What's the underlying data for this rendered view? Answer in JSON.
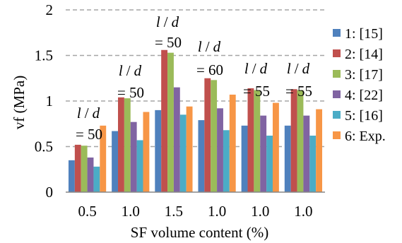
{
  "chart_data": {
    "type": "bar",
    "xlabel": "SF volume content (%)",
    "ylabel": "vf  (MPa)",
    "ylim": [
      0,
      2
    ],
    "yticks": [
      "0",
      "0.5",
      "1",
      "1.5",
      "2"
    ],
    "grid": true,
    "legend_position": "right",
    "categories": [
      "0.5",
      "1.0",
      "1.5",
      "1.0",
      "1.0",
      "1.0"
    ],
    "series": [
      {
        "name": "1: [15]",
        "color": "#4f81bd",
        "values": [
          0.35,
          0.67,
          0.9,
          0.79,
          0.73,
          0.73
        ]
      },
      {
        "name": "2: [14]",
        "color": "#c0504d",
        "values": [
          0.52,
          1.04,
          1.56,
          1.25,
          1.14,
          1.13
        ]
      },
      {
        "name": "3: [17]",
        "color": "#9bbb59",
        "values": [
          0.51,
          1.03,
          1.53,
          1.23,
          1.12,
          1.12
        ]
      },
      {
        "name": "4: [22]",
        "color": "#8064a2",
        "values": [
          0.38,
          0.77,
          1.15,
          0.92,
          0.84,
          0.84
        ]
      },
      {
        "name": "5: [16]",
        "color": "#4bacc6",
        "values": [
          0.28,
          0.57,
          0.85,
          0.68,
          0.62,
          0.62
        ]
      },
      {
        "name": "6: Exp.",
        "color": "#f79646",
        "values": [
          0.73,
          0.88,
          0.94,
          1.07,
          0.98,
          0.91
        ]
      }
    ],
    "annotations": [
      {
        "l": "l",
        "slash": "/",
        "d": "d",
        "value": "= 50"
      },
      {
        "l": "l",
        "slash": "/",
        "d": "d",
        "value": "= 50"
      },
      {
        "l": "l",
        "slash": "/",
        "d": "d",
        "value": "= 50"
      },
      {
        "l": "l",
        "slash": "/",
        "d": "d",
        "value": "= 60"
      },
      {
        "l": "l",
        "slash": "/",
        "d": "d",
        "value": "= 55"
      },
      {
        "l": "l",
        "slash": "/",
        "d": "d",
        "value": "= 55"
      }
    ]
  }
}
